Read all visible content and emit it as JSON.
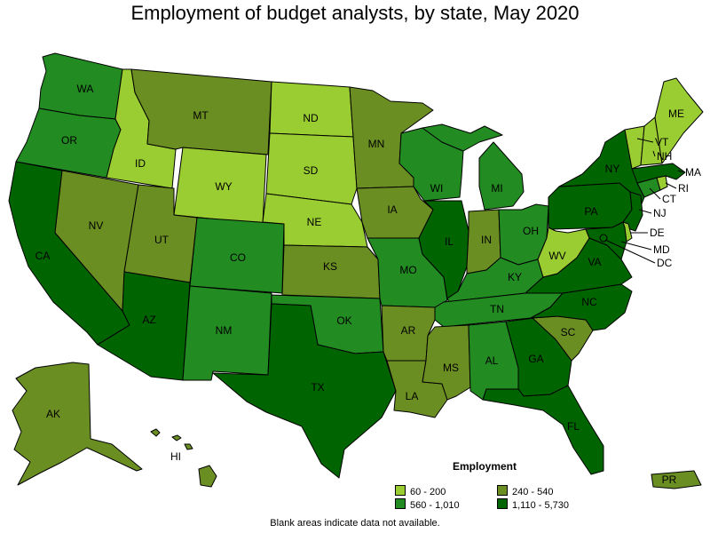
{
  "title": "Employment of budget analysts, by state, May 2020",
  "legend": {
    "title": "Employment",
    "bins": [
      {
        "label": "60 - 200",
        "color": "#9acd32"
      },
      {
        "label": "240 - 540",
        "color": "#6b8e23"
      },
      {
        "label": "560 - 1,010",
        "color": "#228b22"
      },
      {
        "label": "1,110 - 5,730",
        "color": "#006400"
      }
    ]
  },
  "footnote": "Blank areas indicate data not available.",
  "states": {
    "WA": {
      "label": "WA",
      "bin": 2
    },
    "OR": {
      "label": "OR",
      "bin": 2
    },
    "CA": {
      "label": "CA",
      "bin": 3
    },
    "ID": {
      "label": "ID",
      "bin": 0
    },
    "NV": {
      "label": "NV",
      "bin": 1
    },
    "MT": {
      "label": "MT",
      "bin": 1
    },
    "WY": {
      "label": "WY",
      "bin": 0
    },
    "UT": {
      "label": "UT",
      "bin": 1
    },
    "AZ": {
      "label": "AZ",
      "bin": 3
    },
    "CO": {
      "label": "CO",
      "bin": 2
    },
    "NM": {
      "label": "NM",
      "bin": 2
    },
    "ND": {
      "label": "ND",
      "bin": 0
    },
    "SD": {
      "label": "SD",
      "bin": 0
    },
    "NE": {
      "label": "NE",
      "bin": 0
    },
    "KS": {
      "label": "KS",
      "bin": 1
    },
    "OK": {
      "label": "OK",
      "bin": 2
    },
    "TX": {
      "label": "TX",
      "bin": 3
    },
    "MN": {
      "label": "MN",
      "bin": 1
    },
    "IA": {
      "label": "IA",
      "bin": 1
    },
    "MO": {
      "label": "MO",
      "bin": 2
    },
    "AR": {
      "label": "AR",
      "bin": 1
    },
    "LA": {
      "label": "LA",
      "bin": 1
    },
    "WI": {
      "label": "WI",
      "bin": 2
    },
    "IL": {
      "label": "IL",
      "bin": 3
    },
    "MI": {
      "label": "MI",
      "bin": 2
    },
    "IN": {
      "label": "IN",
      "bin": 1
    },
    "OH": {
      "label": "OH",
      "bin": 2
    },
    "KY": {
      "label": "KY",
      "bin": 2
    },
    "TN": {
      "label": "TN",
      "bin": 2
    },
    "MS": {
      "label": "MS",
      "bin": 1
    },
    "AL": {
      "label": "AL",
      "bin": 2
    },
    "GA": {
      "label": "GA",
      "bin": 3
    },
    "FL": {
      "label": "FL",
      "bin": 3
    },
    "SC": {
      "label": "SC",
      "bin": 1
    },
    "NC": {
      "label": "NC",
      "bin": 3
    },
    "VA": {
      "label": "VA",
      "bin": 3
    },
    "WV": {
      "label": "WV",
      "bin": 0
    },
    "PA": {
      "label": "PA",
      "bin": 3
    },
    "NY": {
      "label": "NY",
      "bin": 3
    },
    "ME": {
      "label": "ME",
      "bin": 0
    },
    "VT": {
      "label": "VT",
      "bin": 0
    },
    "NH": {
      "label": "NH",
      "bin": 0
    },
    "MA": {
      "label": "MA",
      "bin": 3
    },
    "CT": {
      "label": "CT",
      "bin": 2
    },
    "RI": {
      "label": "RI",
      "bin": 0
    },
    "NJ": {
      "label": "NJ",
      "bin": 3
    },
    "DE": {
      "label": "DE",
      "bin": 0
    },
    "MD": {
      "label": "MD",
      "bin": 3
    },
    "DC": {
      "label": "DC",
      "bin": 3
    },
    "AK": {
      "label": "AK",
      "bin": 1
    },
    "HI": {
      "label": "HI",
      "bin": 1
    },
    "PR": {
      "label": "PR",
      "bin": 1
    }
  }
}
